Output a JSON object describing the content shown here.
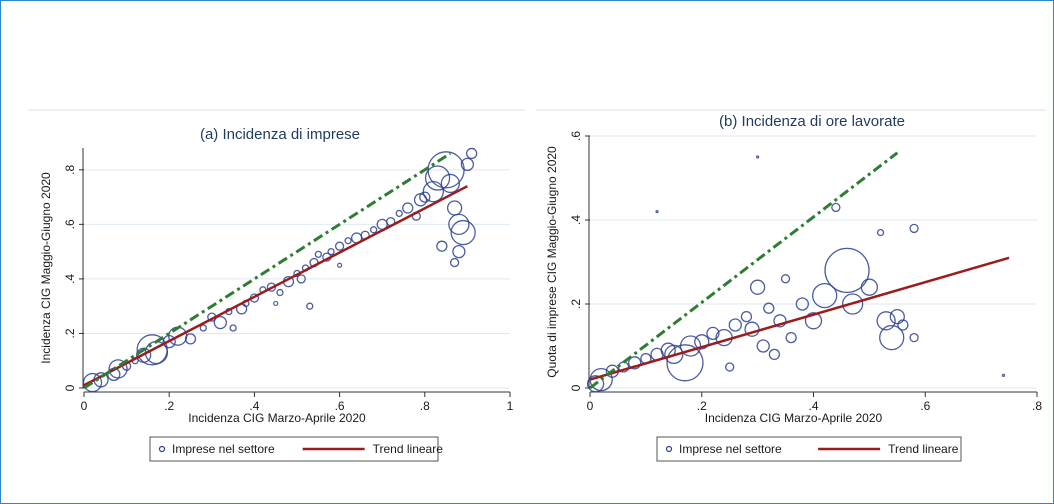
{
  "chart_data": [
    {
      "type": "scatter",
      "title": "(a) Incidenza di imprese",
      "xlabel": "Incidenza CIG Marzo-Aprile 2020",
      "ylabel": "Incidenza CIG Maggio-Giugno 2020",
      "xlim": [
        0,
        1
      ],
      "ylim": [
        0,
        0.88
      ],
      "xticks": [
        0,
        0.2,
        0.4,
        0.6,
        0.8,
        1
      ],
      "xtick_labels": [
        "0",
        ".2",
        ".4",
        ".6",
        ".8",
        "1"
      ],
      "yticks": [
        0,
        0.2,
        0.4,
        0.6,
        0.8
      ],
      "ytick_labels": [
        "0",
        ".2",
        ".4",
        ".6",
        ".8"
      ],
      "grid": true,
      "legend_position": "bottom",
      "series": [
        {
          "name": "Imprese nel settore",
          "type": "scatter",
          "color": "#2b3f8f",
          "points": [
            [
              0.02,
              0.02,
              9
            ],
            [
              0.04,
              0.03,
              7
            ],
            [
              0.07,
              0.05,
              6
            ],
            [
              0.08,
              0.07,
              9
            ],
            [
              0.1,
              0.08,
              4
            ],
            [
              0.12,
              0.1,
              3
            ],
            [
              0.14,
              0.12,
              7
            ],
            [
              0.16,
              0.14,
              15
            ],
            [
              0.17,
              0.13,
              11
            ],
            [
              0.2,
              0.17,
              6
            ],
            [
              0.22,
              0.19,
              9
            ],
            [
              0.25,
              0.18,
              5
            ],
            [
              0.28,
              0.22,
              3
            ],
            [
              0.3,
              0.26,
              4
            ],
            [
              0.32,
              0.24,
              6
            ],
            [
              0.34,
              0.28,
              3
            ],
            [
              0.35,
              0.22,
              3
            ],
            [
              0.37,
              0.29,
              5
            ],
            [
              0.38,
              0.31,
              3
            ],
            [
              0.4,
              0.33,
              4
            ],
            [
              0.42,
              0.36,
              3
            ],
            [
              0.44,
              0.37,
              4
            ],
            [
              0.46,
              0.35,
              3
            ],
            [
              0.48,
              0.39,
              5
            ],
            [
              0.5,
              0.42,
              3
            ],
            [
              0.51,
              0.4,
              4
            ],
            [
              0.52,
              0.44,
              3
            ],
            [
              0.54,
              0.46,
              4
            ],
            [
              0.55,
              0.49,
              3
            ],
            [
              0.57,
              0.48,
              4
            ],
            [
              0.58,
              0.5,
              3
            ],
            [
              0.6,
              0.52,
              4
            ],
            [
              0.62,
              0.54,
              3
            ],
            [
              0.64,
              0.55,
              5
            ],
            [
              0.66,
              0.56,
              4
            ],
            [
              0.68,
              0.58,
              3
            ],
            [
              0.7,
              0.6,
              5
            ],
            [
              0.72,
              0.61,
              4
            ],
            [
              0.74,
              0.64,
              3
            ],
            [
              0.76,
              0.66,
              5
            ],
            [
              0.78,
              0.63,
              4
            ],
            [
              0.79,
              0.69,
              6
            ],
            [
              0.8,
              0.7,
              5
            ],
            [
              0.82,
              0.72,
              10
            ],
            [
              0.83,
              0.77,
              12
            ],
            [
              0.85,
              0.8,
              18
            ],
            [
              0.86,
              0.75,
              9
            ],
            [
              0.87,
              0.66,
              7
            ],
            [
              0.88,
              0.6,
              10
            ],
            [
              0.89,
              0.57,
              12
            ],
            [
              0.9,
              0.82,
              6
            ],
            [
              0.91,
              0.86,
              5
            ],
            [
              0.88,
              0.5,
              6
            ],
            [
              0.87,
              0.46,
              4
            ],
            [
              0.84,
              0.52,
              5
            ],
            [
              0.53,
              0.3,
              3
            ],
            [
              0.45,
              0.31,
              2
            ],
            [
              0.6,
              0.45,
              2
            ]
          ]
        },
        {
          "name": "Trend lineare",
          "type": "line",
          "color": "#9b1c1c",
          "x": [
            0,
            0.9
          ],
          "y": [
            0.01,
            0.74
          ]
        },
        {
          "name": "",
          "type": "line",
          "style": "dashed",
          "color": "#2e7d32",
          "x": [
            0,
            0.86
          ],
          "y": [
            0,
            0.86
          ]
        }
      ]
    },
    {
      "type": "scatter",
      "title": "(b) Incidenza di ore lavorate",
      "xlabel": "Incidenza CIG Marzo-Aprile 2020",
      "ylabel": "Quota di imprese CIG Maggio-Giugno 2020",
      "xlim": [
        0,
        0.8
      ],
      "ylim": [
        0,
        0.6
      ],
      "xticks": [
        0,
        0.2,
        0.4,
        0.6,
        0.8
      ],
      "xtick_labels": [
        "0",
        ".2",
        ".4",
        ".6",
        ".8"
      ],
      "yticks": [
        0,
        0.2,
        0.4,
        0.6
      ],
      "ytick_labels": [
        "0",
        ".2",
        ".4",
        ".6"
      ],
      "grid": true,
      "legend_position": "bottom",
      "series": [
        {
          "name": "Imprese nel settore",
          "type": "scatter",
          "color": "#2b3f8f",
          "points": [
            [
              0.01,
              0.01,
              8
            ],
            [
              0.02,
              0.02,
              11
            ],
            [
              0.04,
              0.04,
              6
            ],
            [
              0.06,
              0.05,
              5
            ],
            [
              0.08,
              0.06,
              6
            ],
            [
              0.1,
              0.07,
              5
            ],
            [
              0.12,
              0.08,
              6
            ],
            [
              0.14,
              0.09,
              7
            ],
            [
              0.15,
              0.08,
              9
            ],
            [
              0.17,
              0.06,
              18
            ],
            [
              0.18,
              0.1,
              10
            ],
            [
              0.2,
              0.11,
              7
            ],
            [
              0.22,
              0.13,
              6
            ],
            [
              0.24,
              0.12,
              8
            ],
            [
              0.26,
              0.15,
              6
            ],
            [
              0.28,
              0.17,
              5
            ],
            [
              0.29,
              0.14,
              7
            ],
            [
              0.3,
              0.24,
              7
            ],
            [
              0.31,
              0.1,
              6
            ],
            [
              0.32,
              0.19,
              5
            ],
            [
              0.34,
              0.16,
              6
            ],
            [
              0.35,
              0.26,
              4
            ],
            [
              0.36,
              0.12,
              5
            ],
            [
              0.38,
              0.2,
              6
            ],
            [
              0.4,
              0.16,
              8
            ],
            [
              0.42,
              0.22,
              12
            ],
            [
              0.44,
              0.43,
              4
            ],
            [
              0.46,
              0.28,
              22
            ],
            [
              0.47,
              0.2,
              10
            ],
            [
              0.5,
              0.24,
              8
            ],
            [
              0.52,
              0.37,
              3
            ],
            [
              0.53,
              0.16,
              9
            ],
            [
              0.54,
              0.12,
              12
            ],
            [
              0.55,
              0.17,
              7
            ],
            [
              0.56,
              0.15,
              5
            ],
            [
              0.58,
              0.38,
              4
            ],
            [
              0.58,
              0.12,
              4
            ],
            [
              0.3,
              0.55,
              1
            ],
            [
              0.12,
              0.42,
              1
            ],
            [
              0.74,
              0.03,
              1
            ],
            [
              0.25,
              0.05,
              4
            ],
            [
              0.33,
              0.08,
              5
            ]
          ]
        },
        {
          "name": "Trend lineare",
          "type": "line",
          "color": "#9b1c1c",
          "x": [
            0,
            0.75
          ],
          "y": [
            0.02,
            0.31
          ]
        },
        {
          "name": "",
          "type": "line",
          "style": "dashed",
          "color": "#2e7d32",
          "x": [
            0,
            0.55
          ],
          "y": [
            0,
            0.56
          ]
        }
      ]
    }
  ]
}
